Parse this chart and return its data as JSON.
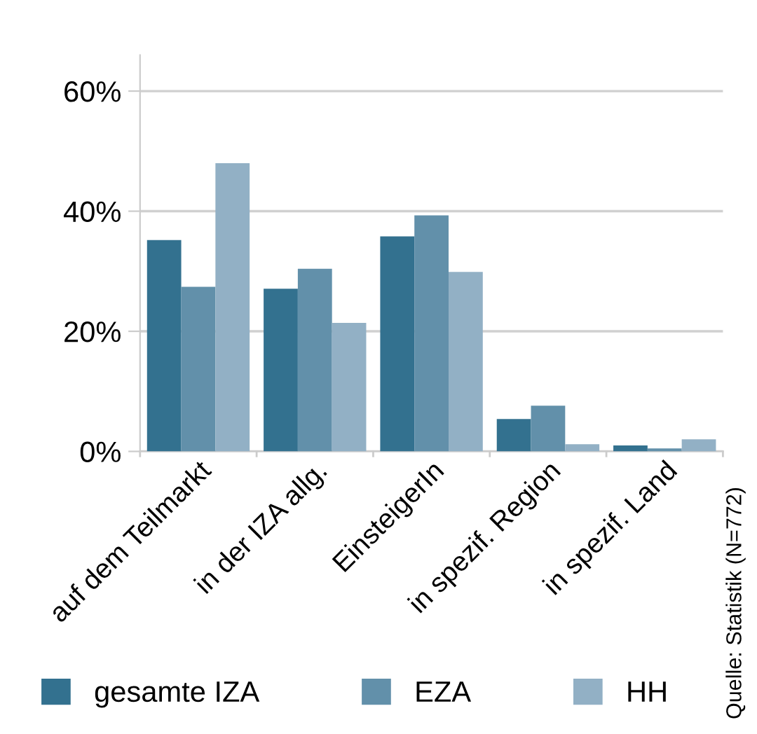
{
  "chart_data": {
    "type": "bar",
    "categories": [
      "auf dem Teilmarkt",
      "in der IZA allg.",
      "EinsteigerIn",
      "in spezif. Region",
      "in spezif. Land"
    ],
    "series": [
      {
        "name": "gesamte IZA",
        "color": "#33718f",
        "values": [
          35.2,
          27.1,
          35.8,
          5.4,
          1.0
        ]
      },
      {
        "name": "EZA",
        "color": "#6290aa",
        "values": [
          27.4,
          30.4,
          39.3,
          7.6,
          0.5
        ]
      },
      {
        "name": "HH",
        "color": "#92b0c5",
        "values": [
          48.0,
          21.4,
          29.9,
          1.2,
          2.0
        ]
      }
    ],
    "ylim": [
      0,
      66
    ],
    "yticks": [
      {
        "value": 0,
        "label": "0%"
      },
      {
        "value": 20,
        "label": "20%"
      },
      {
        "value": 40,
        "label": "40%"
      },
      {
        "value": 60,
        "label": "60%"
      }
    ],
    "grid": "y",
    "legend": "bottom",
    "annotations": [
      "Quelle: Statistik (N=772)"
    ]
  }
}
